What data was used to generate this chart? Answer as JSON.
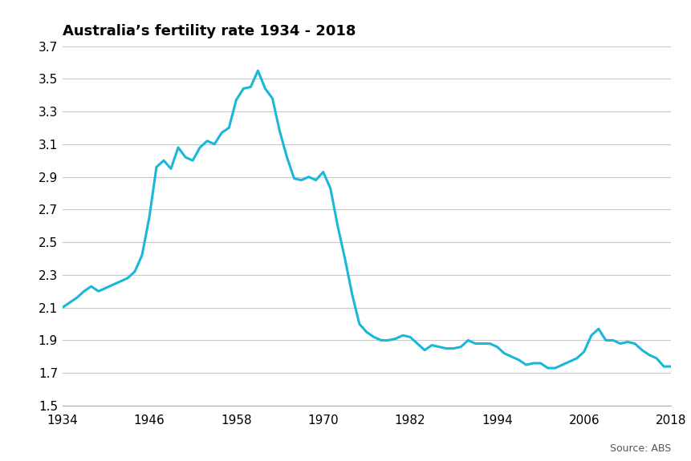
{
  "title": "Australia’s fertility rate 1934 - 2018",
  "source": "Source: ABS",
  "line_color": "#1ab8d8",
  "background_color": "#ffffff",
  "xlim": [
    1934,
    2018
  ],
  "ylim": [
    1.5,
    3.7
  ],
  "yticks": [
    1.5,
    1.7,
    1.9,
    2.1,
    2.3,
    2.5,
    2.7,
    2.9,
    3.1,
    3.3,
    3.5,
    3.7
  ],
  "xticks": [
    1934,
    1946,
    1958,
    1970,
    1982,
    1994,
    2006,
    2018
  ],
  "data": [
    [
      1934,
      2.1
    ],
    [
      1935,
      2.13
    ],
    [
      1936,
      2.16
    ],
    [
      1937,
      2.2
    ],
    [
      1938,
      2.23
    ],
    [
      1939,
      2.2
    ],
    [
      1940,
      2.22
    ],
    [
      1941,
      2.24
    ],
    [
      1942,
      2.26
    ],
    [
      1943,
      2.28
    ],
    [
      1944,
      2.32
    ],
    [
      1945,
      2.42
    ],
    [
      1946,
      2.65
    ],
    [
      1947,
      2.96
    ],
    [
      1948,
      3.0
    ],
    [
      1949,
      2.95
    ],
    [
      1950,
      3.08
    ],
    [
      1951,
      3.02
    ],
    [
      1952,
      3.0
    ],
    [
      1953,
      3.08
    ],
    [
      1954,
      3.12
    ],
    [
      1955,
      3.1
    ],
    [
      1956,
      3.17
    ],
    [
      1957,
      3.2
    ],
    [
      1958,
      3.37
    ],
    [
      1959,
      3.44
    ],
    [
      1960,
      3.45
    ],
    [
      1961,
      3.55
    ],
    [
      1962,
      3.44
    ],
    [
      1963,
      3.38
    ],
    [
      1964,
      3.18
    ],
    [
      1965,
      3.02
    ],
    [
      1966,
      2.89
    ],
    [
      1967,
      2.88
    ],
    [
      1968,
      2.9
    ],
    [
      1969,
      2.88
    ],
    [
      1970,
      2.93
    ],
    [
      1971,
      2.83
    ],
    [
      1972,
      2.6
    ],
    [
      1973,
      2.4
    ],
    [
      1974,
      2.18
    ],
    [
      1975,
      2.0
    ],
    [
      1976,
      1.95
    ],
    [
      1977,
      1.92
    ],
    [
      1978,
      1.9
    ],
    [
      1979,
      1.9
    ],
    [
      1980,
      1.91
    ],
    [
      1981,
      1.93
    ],
    [
      1982,
      1.92
    ],
    [
      1983,
      1.88
    ],
    [
      1984,
      1.84
    ],
    [
      1985,
      1.87
    ],
    [
      1986,
      1.86
    ],
    [
      1987,
      1.85
    ],
    [
      1988,
      1.85
    ],
    [
      1989,
      1.86
    ],
    [
      1990,
      1.9
    ],
    [
      1991,
      1.88
    ],
    [
      1992,
      1.88
    ],
    [
      1993,
      1.88
    ],
    [
      1994,
      1.86
    ],
    [
      1995,
      1.82
    ],
    [
      1996,
      1.8
    ],
    [
      1997,
      1.78
    ],
    [
      1998,
      1.75
    ],
    [
      1999,
      1.76
    ],
    [
      2000,
      1.76
    ],
    [
      2001,
      1.73
    ],
    [
      2002,
      1.73
    ],
    [
      2003,
      1.75
    ],
    [
      2004,
      1.77
    ],
    [
      2005,
      1.79
    ],
    [
      2006,
      1.83
    ],
    [
      2007,
      1.93
    ],
    [
      2008,
      1.97
    ],
    [
      2009,
      1.9
    ],
    [
      2010,
      1.9
    ],
    [
      2011,
      1.88
    ],
    [
      2012,
      1.89
    ],
    [
      2013,
      1.88
    ],
    [
      2014,
      1.84
    ],
    [
      2015,
      1.81
    ],
    [
      2016,
      1.79
    ],
    [
      2017,
      1.74
    ],
    [
      2018,
      1.74
    ]
  ]
}
